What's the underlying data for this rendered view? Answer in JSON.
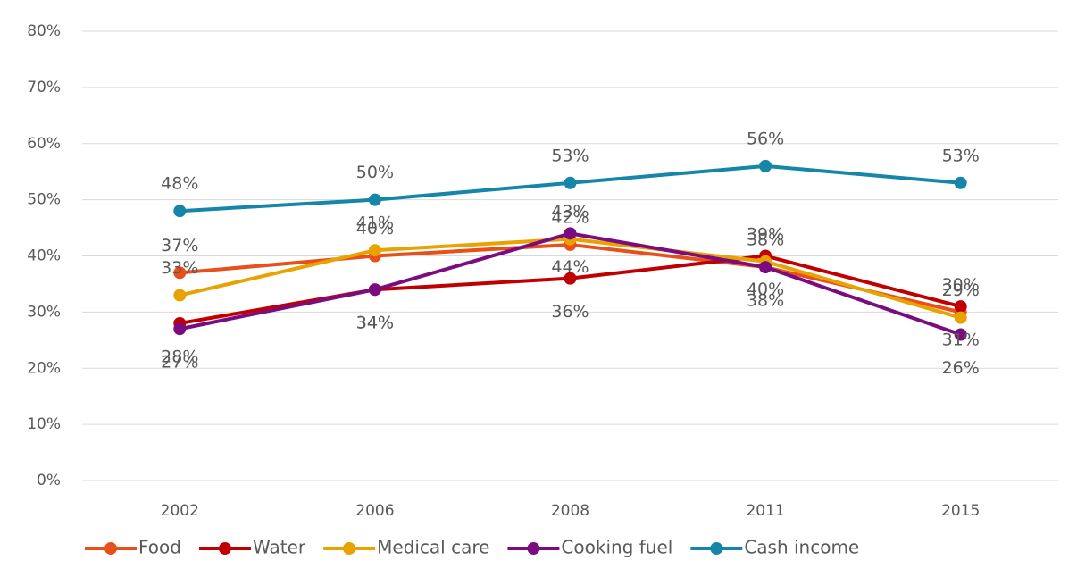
{
  "chart_data": {
    "type": "line",
    "categories": [
      "2002",
      "2006",
      "2008",
      "2011",
      "2015"
    ],
    "series": [
      {
        "name": "Food",
        "color": "#e8501b",
        "values": [
          37,
          40,
          42,
          38,
          30
        ],
        "value_labels": [
          "37%",
          "40%",
          "42%",
          "38%",
          "30%"
        ]
      },
      {
        "name": "Water",
        "color": "#c00000",
        "values": [
          28,
          34,
          36,
          40,
          31
        ],
        "value_labels": [
          "28%",
          "34%",
          "36%",
          "40%",
          "31%"
        ]
      },
      {
        "name": "Medical care",
        "color": "#e8a202",
        "values": [
          33,
          41,
          43,
          39,
          29
        ],
        "value_labels": [
          "33%",
          "41%",
          "43%",
          "39%",
          "29%"
        ]
      },
      {
        "name": "Cooking fuel",
        "color": "#7b0c80",
        "values": [
          27,
          34,
          44,
          38,
          26
        ],
        "value_labels": [
          "27%",
          "34%",
          "44%",
          "38%",
          "26%"
        ]
      },
      {
        "name": "Cash income",
        "color": "#1586a8",
        "values": [
          48,
          50,
          53,
          56,
          53
        ],
        "value_labels": [
          "48%",
          "50%",
          "53%",
          "56%",
          "53%"
        ]
      }
    ],
    "ylim": [
      0,
      80
    ],
    "yticks": [
      {
        "value": 0,
        "label": "0%"
      },
      {
        "value": 10,
        "label": "10%"
      },
      {
        "value": 20,
        "label": "20%"
      },
      {
        "value": 30,
        "label": "30%"
      },
      {
        "value": 40,
        "label": "40%"
      },
      {
        "value": 50,
        "label": "50%"
      },
      {
        "value": 60,
        "label": "60%"
      },
      {
        "value": 70,
        "label": "70%"
      },
      {
        "value": 80,
        "label": "80%"
      }
    ],
    "grid": true,
    "legend": "bottom"
  }
}
